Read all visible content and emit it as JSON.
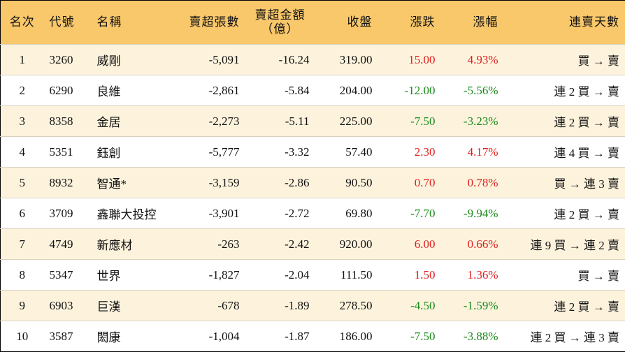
{
  "table": {
    "header": [
      [
        "名次"
      ],
      [
        "代號"
      ],
      [
        "名稱"
      ],
      [
        "賣超張數"
      ],
      [
        "賣超金額",
        "（億）"
      ],
      [
        "收盤"
      ],
      [
        "漲跌"
      ],
      [
        "漲幅"
      ],
      [
        "連賣天數"
      ]
    ],
    "rows": [
      [
        "1",
        "3260",
        "威剛",
        "-5,091",
        "-16.24",
        "319.00",
        "15.00",
        "4.93%",
        "買 → 賣"
      ],
      [
        "2",
        "6290",
        "良維",
        "-2,861",
        "-5.84",
        "204.00",
        "-12.00",
        "-5.56%",
        "連 2 買 → 賣"
      ],
      [
        "3",
        "8358",
        "金居",
        "-2,273",
        "-5.11",
        "225.00",
        "-7.50",
        "-3.23%",
        "連 2 買 → 賣"
      ],
      [
        "4",
        "5351",
        "鈺創",
        "-5,777",
        "-3.32",
        "57.40",
        "2.30",
        "4.17%",
        "連 4 買 → 賣"
      ],
      [
        "5",
        "8932",
        "智通*",
        "-3,159",
        "-2.86",
        "90.50",
        "0.70",
        "0.78%",
        "買 → 連 3 賣"
      ],
      [
        "6",
        "3709",
        "鑫聯大投控",
        "-3,901",
        "-2.72",
        "69.80",
        "-7.70",
        "-9.94%",
        "連 2 買 → 賣"
      ],
      [
        "7",
        "4749",
        "新應材",
        "-263",
        "-2.42",
        "920.00",
        "6.00",
        "0.66%",
        "連 9 買 → 連 2 賣"
      ],
      [
        "8",
        "5347",
        "世界",
        "-1,827",
        "-2.04",
        "111.50",
        "1.50",
        "1.36%",
        "買 → 賣"
      ],
      [
        "9",
        "6903",
        "巨漢",
        "-678",
        "-1.89",
        "278.50",
        "-4.50",
        "-1.59%",
        "連 2 買 → 賣"
      ],
      [
        "10",
        "3587",
        "閎康",
        "-1,004",
        "-1.87",
        "186.00",
        "-7.50",
        "-3.88%",
        "連 2 買 → 連 3 賣"
      ]
    ]
  }
}
